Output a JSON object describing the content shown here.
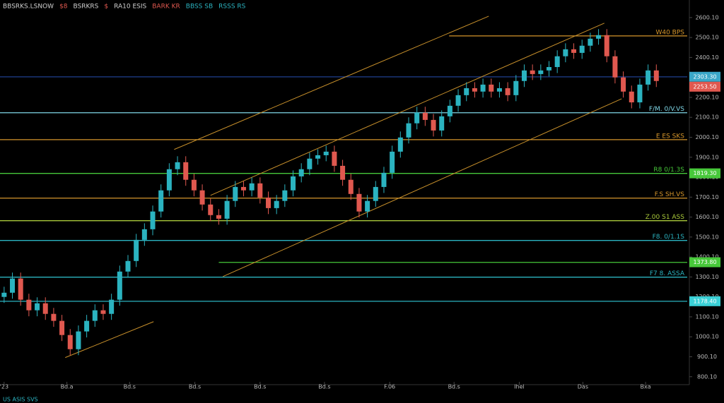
{
  "chart_data": {
    "type": "candlestick",
    "legend": [
      {
        "text": "BBSRKS.LSNOW",
        "color": "#cfcfcf"
      },
      {
        "text": "$8",
        "color": "#e0584f"
      },
      {
        "text": "BSRKRS",
        "color": "#cfcfcf"
      },
      {
        "text": "$",
        "color": "#e0584f"
      },
      {
        "text": "RA10 ESIS",
        "color": "#cfcfcf"
      },
      {
        "text": "BARK KR",
        "color": "#e0584f"
      },
      {
        "text": "BBSS SB",
        "color": "#2bb3c0"
      },
      {
        "text": "RSSS RS",
        "color": "#2bb3c0"
      }
    ],
    "footer": "US ASIS SVS",
    "up_color": "#2bb3c0",
    "down_color": "#e0584f",
    "candles": [
      [
        1200,
        1251,
        1170,
        1221
      ],
      [
        1221,
        1322,
        1191,
        1292
      ],
      [
        1292,
        1322,
        1156,
        1186
      ],
      [
        1186,
        1216,
        1103,
        1133
      ],
      [
        1133,
        1198,
        1103,
        1168
      ],
      [
        1168,
        1198,
        1085,
        1115
      ],
      [
        1115,
        1145,
        1050,
        1080
      ],
      [
        1080,
        1110,
        979,
        1009
      ],
      [
        1009,
        1039,
        908,
        938
      ],
      [
        938,
        1057,
        908,
        1027
      ],
      [
        1027,
        1110,
        997,
        1080
      ],
      [
        1080,
        1163,
        1050,
        1133
      ],
      [
        1133,
        1163,
        1085,
        1115
      ],
      [
        1115,
        1216,
        1085,
        1186
      ],
      [
        1186,
        1357,
        1156,
        1327
      ],
      [
        1327,
        1410,
        1297,
        1380
      ],
      [
        1380,
        1516,
        1350,
        1486
      ],
      [
        1486,
        1569,
        1456,
        1539
      ],
      [
        1539,
        1658,
        1509,
        1628
      ],
      [
        1628,
        1764,
        1598,
        1734
      ],
      [
        1734,
        1870,
        1704,
        1840
      ],
      [
        1840,
        1905,
        1810,
        1875
      ],
      [
        1875,
        1905,
        1757,
        1787
      ],
      [
        1787,
        1817,
        1704,
        1734
      ],
      [
        1734,
        1764,
        1633,
        1663
      ],
      [
        1663,
        1693,
        1580,
        1610
      ],
      [
        1610,
        1640,
        1562,
        1592
      ],
      [
        1592,
        1711,
        1562,
        1681
      ],
      [
        1681,
        1781,
        1651,
        1751
      ],
      [
        1751,
        1781,
        1704,
        1734
      ],
      [
        1734,
        1799,
        1704,
        1769
      ],
      [
        1769,
        1799,
        1668,
        1698
      ],
      [
        1698,
        1728,
        1615,
        1645
      ],
      [
        1645,
        1711,
        1615,
        1681
      ],
      [
        1681,
        1764,
        1651,
        1734
      ],
      [
        1734,
        1834,
        1704,
        1804
      ],
      [
        1804,
        1870,
        1774,
        1840
      ],
      [
        1840,
        1923,
        1810,
        1893
      ],
      [
        1893,
        1940,
        1863,
        1910
      ],
      [
        1910,
        1958,
        1880,
        1928
      ],
      [
        1928,
        1958,
        1827,
        1857
      ],
      [
        1857,
        1887,
        1757,
        1787
      ],
      [
        1787,
        1817,
        1686,
        1716
      ],
      [
        1716,
        1746,
        1598,
        1628
      ],
      [
        1628,
        1711,
        1598,
        1681
      ],
      [
        1681,
        1781,
        1651,
        1751
      ],
      [
        1751,
        1852,
        1721,
        1822
      ],
      [
        1822,
        1958,
        1792,
        1928
      ],
      [
        1928,
        2029,
        1898,
        1999
      ],
      [
        1999,
        2100,
        1969,
        2070
      ],
      [
        2070,
        2153,
        2040,
        2123
      ],
      [
        2123,
        2153,
        2057,
        2087
      ],
      [
        2087,
        2117,
        2004,
        2034
      ],
      [
        2034,
        2135,
        2004,
        2105
      ],
      [
        2105,
        2188,
        2075,
        2158
      ],
      [
        2158,
        2241,
        2128,
        2211
      ],
      [
        2211,
        2276,
        2181,
        2246
      ],
      [
        2246,
        2276,
        2199,
        2229
      ],
      [
        2229,
        2294,
        2199,
        2264
      ],
      [
        2264,
        2294,
        2199,
        2229
      ],
      [
        2229,
        2276,
        2199,
        2246
      ],
      [
        2246,
        2276,
        2181,
        2211
      ],
      [
        2211,
        2312,
        2181,
        2282
      ],
      [
        2282,
        2365,
        2252,
        2335
      ],
      [
        2335,
        2365,
        2287,
        2317
      ],
      [
        2317,
        2365,
        2287,
        2335
      ],
      [
        2335,
        2382,
        2305,
        2352
      ],
      [
        2352,
        2436,
        2322,
        2406
      ],
      [
        2406,
        2471,
        2376,
        2441
      ],
      [
        2441,
        2471,
        2393,
        2423
      ],
      [
        2423,
        2489,
        2393,
        2459
      ],
      [
        2459,
        2524,
        2429,
        2494
      ],
      [
        2494,
        2542,
        2464,
        2512
      ],
      [
        2512,
        2542,
        2376,
        2406
      ],
      [
        2406,
        2436,
        2270,
        2300
      ],
      [
        2300,
        2330,
        2199,
        2229
      ],
      [
        2229,
        2259,
        2145,
        2175
      ],
      [
        2175,
        2294,
        2145,
        2264
      ],
      [
        2264,
        2365,
        2234,
        2335
      ],
      [
        2335,
        2365,
        2252,
        2282
      ]
    ],
    "xlim": [
      -0.5,
      83
    ],
    "xticks": [
      {
        "value": 0,
        "label": "'23"
      },
      {
        "value": 7.6,
        "label": "Bd.a"
      },
      {
        "value": 15.2,
        "label": "Bd.s"
      },
      {
        "value": 23.1,
        "label": "Bd.s"
      },
      {
        "value": 31,
        "label": "Bd.s"
      },
      {
        "value": 38.8,
        "label": "Bd.s"
      },
      {
        "value": 46.7,
        "label": "F.06"
      },
      {
        "value": 54.5,
        "label": "Bd.s"
      },
      {
        "value": 62.4,
        "label": "Ihel"
      },
      {
        "value": 70.1,
        "label": "Das"
      },
      {
        "value": 77.7,
        "label": "Bxa"
      }
    ],
    "ylim": [
      778,
      2688
    ],
    "yticks": [
      {
        "value": 2600.1,
        "label": "2600.10"
      },
      {
        "value": 2500.1,
        "label": "2500.10"
      },
      {
        "value": 2400.1,
        "label": "2400.10"
      },
      {
        "value": 2300.1,
        "label": "2300.10"
      },
      {
        "value": 2200.1,
        "label": "2200.10"
      },
      {
        "value": 2100.1,
        "label": "2100.10"
      },
      {
        "value": 2000.1,
        "label": "2000.10"
      },
      {
        "value": 1900.1,
        "label": "1900.10"
      },
      {
        "value": 1800.1,
        "label": "1800.10"
      },
      {
        "value": 1700.1,
        "label": "1700.10"
      },
      {
        "value": 1600.1,
        "label": "1600.10"
      },
      {
        "value": 1500.1,
        "label": "1500.10"
      },
      {
        "value": 1400.1,
        "label": "1400.10"
      },
      {
        "value": 1300.1,
        "label": "1300.10"
      },
      {
        "value": 1200.1,
        "label": "1200.10"
      },
      {
        "value": 1100.1,
        "label": "1100.10"
      },
      {
        "value": 1000.1,
        "label": "1000.10"
      },
      {
        "value": 900.1,
        "label": "900.10"
      },
      {
        "value": 800.1,
        "label": "800.10"
      }
    ],
    "grid": false,
    "levels": [
      {
        "value": 2508,
        "color": "#d4952b",
        "start": 53.9,
        "label": "W40 BPS"
      },
      {
        "value": 2303,
        "color": "#1f3f8f"
      },
      {
        "value": 2123,
        "color": "#7fd6e6",
        "label": "F/M. 0/V.VS"
      },
      {
        "value": 1988,
        "color": "#d4952b",
        "label": "E ES SKS"
      },
      {
        "value": 1819,
        "color": "#47c83a",
        "label": "R8 0/1.3S"
      },
      {
        "value": 1695,
        "color": "#d4952b",
        "label": "F.S SH.VS"
      },
      {
        "value": 1582,
        "color": "#a8c83a",
        "label": "Z.00 S1 ASS"
      },
      {
        "value": 1483,
        "color": "#2bb3c0",
        "label": "F8. 0/1.1S"
      },
      {
        "value": 1373,
        "color": "#47c83a",
        "start": 26
      },
      {
        "value": 1299,
        "color": "#2bb3c0",
        "label": "F7 8. ASSA"
      },
      {
        "value": 1178,
        "color": "#2bb3c0"
      }
    ],
    "tags": [
      {
        "value": 2303.3,
        "label": "2303.30",
        "color": "#3aa7c8"
      },
      {
        "value": 2253.5,
        "label": "2253.50",
        "color": "#e0584f"
      },
      {
        "value": 1819.3,
        "label": "1819.30",
        "color": "#47c83a"
      },
      {
        "value": 1373.8,
        "label": "1373.80",
        "color": "#47c83a"
      },
      {
        "value": 1178.4,
        "label": "1178.40",
        "color": "#3ad0d6"
      }
    ],
    "trendlines": [
      {
        "x": [
          20.6,
          58.7
        ],
        "y": [
          1939,
          2607
        ]
      },
      {
        "x": [
          25,
          72.7
        ],
        "y": [
          1709,
          2572
        ]
      },
      {
        "x": [
          26.5,
          74.8
        ],
        "y": [
          1302,
          2193
        ]
      },
      {
        "x": [
          7.4,
          18.1
        ],
        "y": [
          896,
          1076
        ]
      }
    ],
    "trend_color": "#c8902b"
  }
}
